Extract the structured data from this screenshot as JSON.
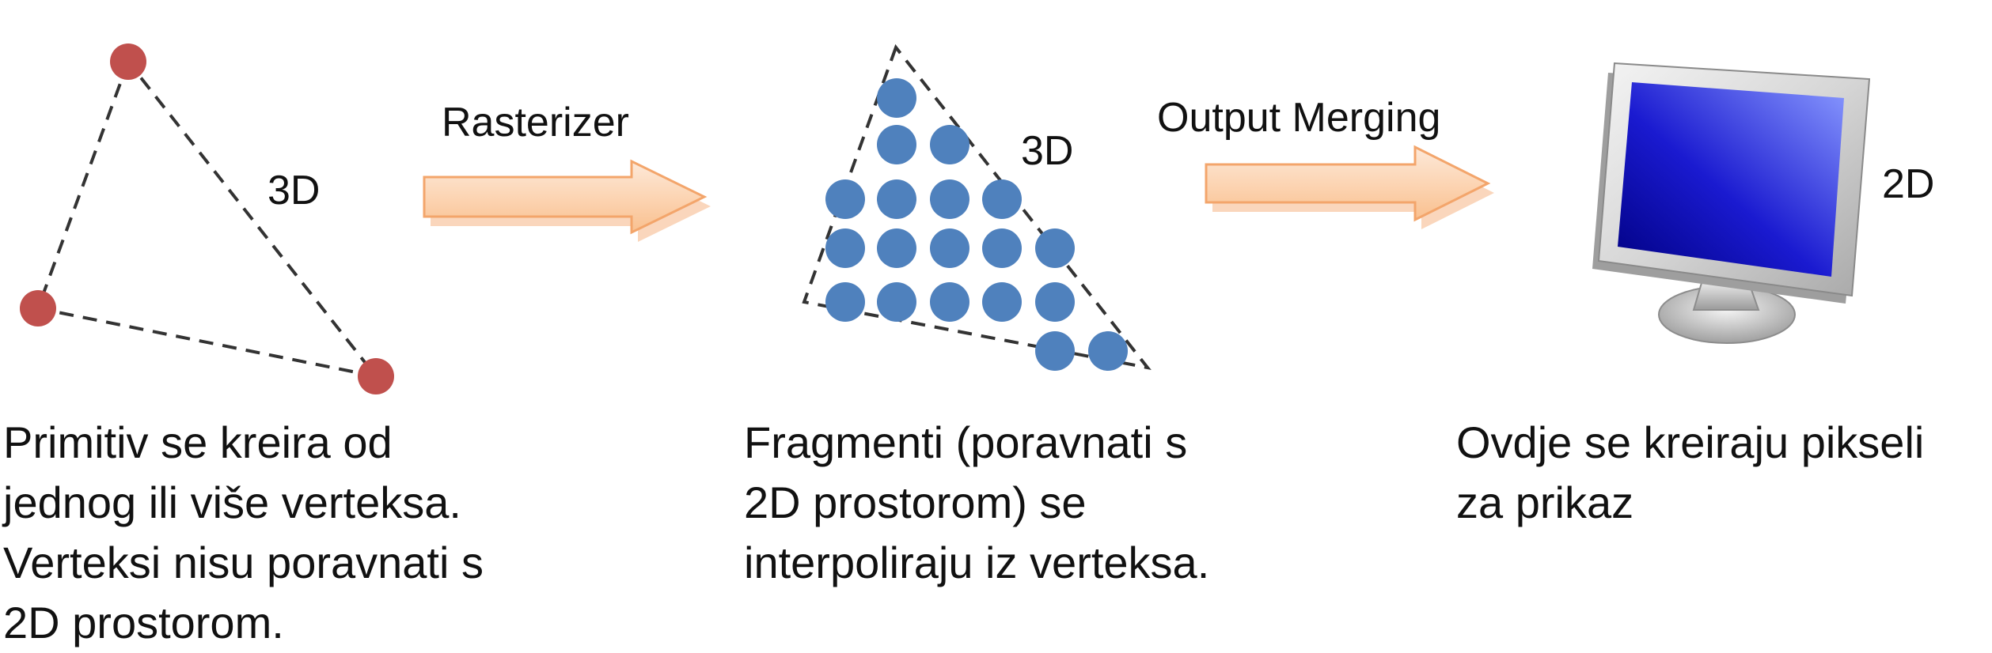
{
  "stages": {
    "vertices": {
      "dimension_label": "3D",
      "caption_lines": [
        "Primitiv se kreira od",
        "jednog ili više verteksa.",
        "Verteksi nisu poravnati s",
        "2D prostorom."
      ]
    },
    "fragments": {
      "dimension_label": "3D",
      "caption_lines": [
        "Fragmenti (poravnati s",
        "2D prostorom) se",
        "interpoliraju iz verteksa."
      ]
    },
    "pixels": {
      "dimension_label": "2D",
      "caption_lines": [
        "Ovdje se kreiraju pikseli",
        "za prikaz"
      ]
    }
  },
  "arrows": {
    "rasterizer_label": "Rasterizer",
    "output_merging_label": "Output Merging"
  },
  "colors": {
    "vertex": "#c0504d",
    "fragment": "#4f81bd",
    "arrow_fill": "#fbd4b4",
    "arrow_stroke": "#f79646",
    "screen": "#1a1ad0",
    "text": "#111111"
  },
  "icons": {
    "monitor": "monitor-icon",
    "arrow": "right-arrow-icon"
  }
}
